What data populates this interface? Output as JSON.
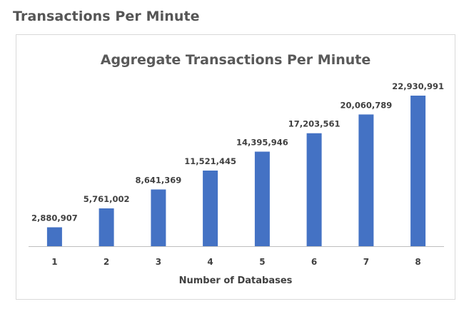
{
  "page": {
    "heading": "Transactions Per Minute"
  },
  "colors": {
    "bar": "#4472c4",
    "axis": "#bfbfbf",
    "heading": "#555555",
    "text": "#404040"
  },
  "chart_data": {
    "type": "bar",
    "title": "Aggregate Transactions Per Minute",
    "xlabel": "Number of Databases",
    "ylabel": "",
    "categories": [
      "1",
      "2",
      "3",
      "4",
      "5",
      "6",
      "7",
      "8"
    ],
    "values": [
      2880907,
      5761002,
      8641369,
      11521445,
      14395946,
      17203561,
      20060789,
      22930991
    ],
    "data_labels": [
      "2,880,907",
      "5,761,002",
      "8,641,369",
      "11,521,445",
      "14,395,946",
      "17,203,561",
      "20,060,789",
      "22,930,991"
    ],
    "ylim": [
      0,
      25000000
    ],
    "grid": false,
    "legend": "none"
  }
}
